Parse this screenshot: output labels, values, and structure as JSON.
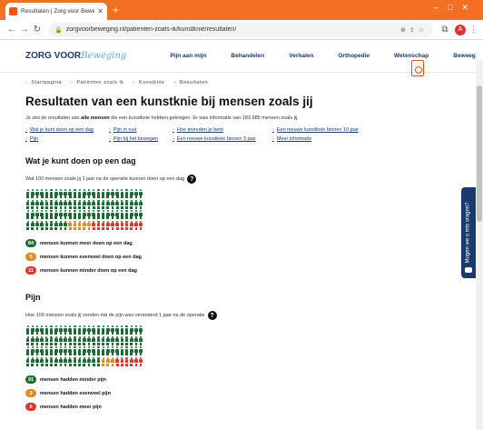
{
  "browser": {
    "tab_title": "Resultaten | Zorg voor Beweging",
    "url": "zorgvoorbeweging.nl/patienten-zoals-ik/kunstknie/resultaten/",
    "avatar_letter": "A"
  },
  "site": {
    "logo_main": "ZORG VOOR",
    "logo_script": "Beweging",
    "nav": [
      "Pijn aan mijn",
      "Behandelen",
      "Verhalen",
      "Orthopedie",
      "Wetenschap",
      "Beweeg"
    ]
  },
  "breadcrumb": [
    "Startpagina",
    "Patiënten zoals ik",
    "Kunstknie",
    "Resultaten"
  ],
  "page": {
    "title": "Resultaten van een kunstknie bij mensen zoals jij",
    "intro_pre": "Je ziet de resultaten van ",
    "intro_bold": "alle mensen",
    "intro_post": " die een kunstknie hebben gekregen. Er was informatie van 183.985 mensen zoals jij."
  },
  "anchors": [
    "Wat je kunt doen op een dag",
    "Pijn in rust",
    "Hoe tevreden je bent",
    "Een nieuwe kunstknie binnen 10 jaar",
    "Pijn",
    "Pijn bij het bewegen",
    "Een nieuwe kunstknie binnen 3 jaar",
    "Meer informatie"
  ],
  "sections": [
    {
      "title": "Wat je kunt doen op een dag",
      "question": "Wat 100 mensen zoals jij 1 jaar na de operatie kunnen doen op een dag",
      "green": 84,
      "orange": 5,
      "red": 11,
      "legend": [
        {
          "count": "84",
          "text": "mensen kunnen meer doen op een dag",
          "color": "#1d6b34"
        },
        {
          "count": "5",
          "text": "mensen kunnen evenveel doen op een dag",
          "color": "#e08a2c"
        },
        {
          "count": "11",
          "text": "mensen kunnen minder doen op een dag",
          "color": "#d9372f"
        }
      ]
    },
    {
      "title": "Pijn",
      "question": "Hoe 100 mensen zoals jij vonden dat de pijn was veranderd 1 jaar na de operatie",
      "green": 91,
      "orange": 3,
      "red": 6,
      "legend": [
        {
          "count": "91",
          "text": "mensen hadden minder pijn",
          "color": "#1d6b34"
        },
        {
          "count": "3",
          "text": "mensen hadden evenveel pijn",
          "color": "#e08a2c"
        },
        {
          "count": "6",
          "text": "mensen hadden meer pijn",
          "color": "#d9372f"
        }
      ]
    }
  ],
  "feedback_label": "Mogen we u iets vragen?"
}
